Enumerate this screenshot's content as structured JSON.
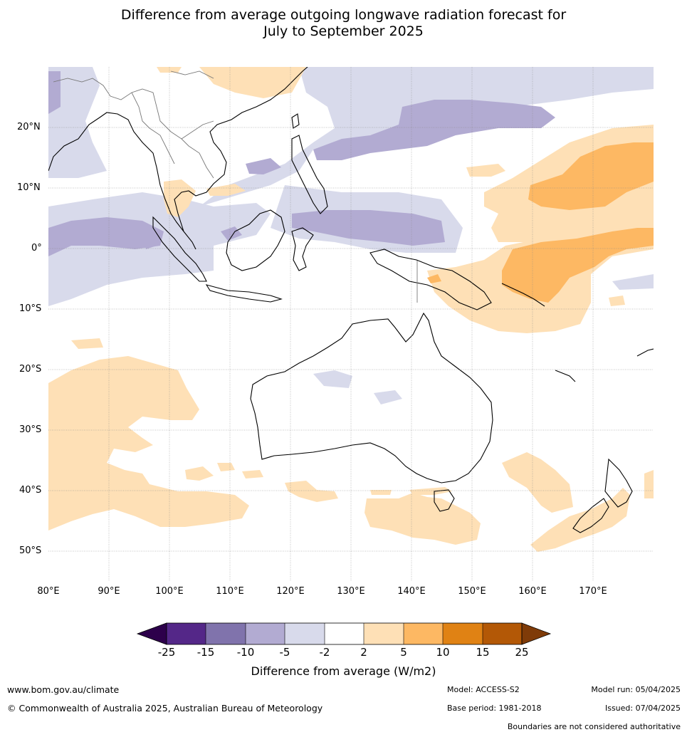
{
  "title_line1": "Difference from average outgoing longwave radiation forecast for",
  "title_line2": "July to September 2025",
  "lat_labels": [
    "20°N",
    "10°N",
    "0°",
    "10°S",
    "20°S",
    "30°S",
    "40°S",
    "50°S"
  ],
  "lon_labels": [
    "80°E",
    "90°E",
    "100°E",
    "110°E",
    "120°E",
    "130°E",
    "140°E",
    "150°E",
    "160°E",
    "170°E"
  ],
  "colorbar": {
    "ticks": [
      "-25",
      "-15",
      "-10",
      "-5",
      "-2",
      "2",
      "5",
      "10",
      "15",
      "25"
    ],
    "title": "Difference from average (W/m2)",
    "colors": {
      "below_-25": "#2d004b",
      "-25_-15": "#542788",
      "-15_-10": "#8073ac",
      "-10_-5": "#b2abd2",
      "-5_-2": "#d8daeb",
      "-2_2": "#ffffff",
      "2_5": "#fee0b6",
      "5_10": "#fdb863",
      "10_15": "#e08214",
      "15_25": "#b35806",
      "above_25": "#7f3b08"
    }
  },
  "footer": {
    "website": "www.bom.gov.au/climate",
    "copyright": "© Commonwealth of Australia 2025, Australian Bureau of Meteorology",
    "model": "Model: ACCESS-S2",
    "base_period": "Base period: 1981-2018",
    "model_run": "Model run: 05/04/2025",
    "issued": "Issued: 07/04/2025",
    "disclaimer": "Boundaries are not considered authoritative"
  }
}
